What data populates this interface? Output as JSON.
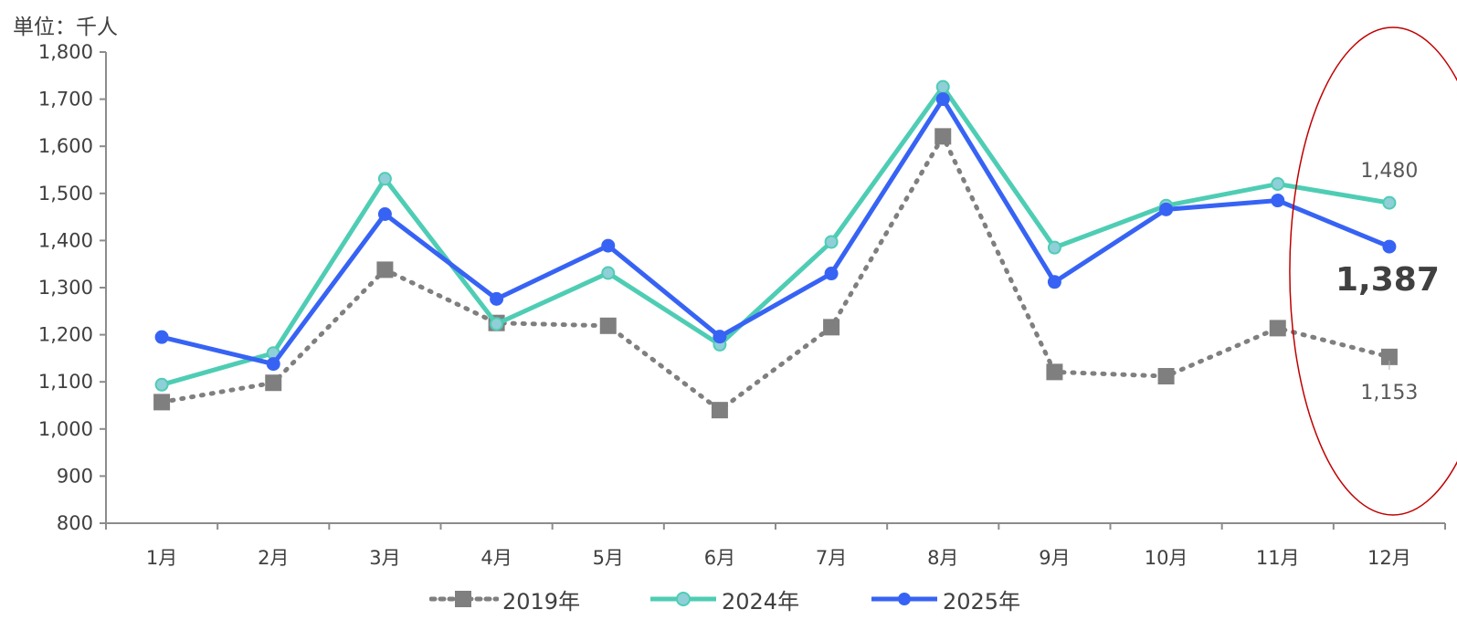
{
  "unit_label": "単位：千人",
  "chart_data": {
    "type": "line",
    "categories": [
      "1月",
      "2月",
      "3月",
      "4月",
      "5月",
      "6月",
      "7月",
      "8月",
      "9月",
      "10月",
      "11月",
      "12月"
    ],
    "y_ticks": [
      "800",
      "900",
      "1,000",
      "1,100",
      "1,200",
      "1,300",
      "1,400",
      "1,500",
      "1,600",
      "1,700",
      "1,800"
    ],
    "ylim": [
      800,
      1800
    ],
    "grid": false,
    "legend_position": "bottom",
    "series": [
      {
        "name": "2019年",
        "style": "dotted-square",
        "color": "#7f7f7f",
        "values": [
          1057,
          1098,
          1338,
          1225,
          1219,
          1040,
          1216,
          1621,
          1121,
          1112,
          1214,
          1153
        ]
      },
      {
        "name": "2024年",
        "style": "solid-circle",
        "color": "#4ecdb4",
        "marker_color": "#8fcfd8",
        "values": [
          1094,
          1161,
          1531,
          1223,
          1331,
          1179,
          1397,
          1726,
          1385,
          1474,
          1520,
          1480
        ]
      },
      {
        "name": "2025年",
        "style": "solid-circle",
        "color": "#3763f4",
        "marker_color": "#3763f4",
        "values": [
          1195,
          1138,
          1456,
          1276,
          1389,
          1196,
          1330,
          1700,
          1312,
          1466,
          1485,
          1387
        ]
      }
    ],
    "data_labels": [
      {
        "series": "2024年",
        "index": 11,
        "text": "1,480"
      },
      {
        "series": "2025年",
        "index": 11,
        "text": "1,387"
      },
      {
        "series": "2019年",
        "index": 11,
        "text": "1,153"
      }
    ],
    "highlight": {
      "index": 11,
      "shape": "ellipse",
      "color": "#c00000"
    }
  }
}
